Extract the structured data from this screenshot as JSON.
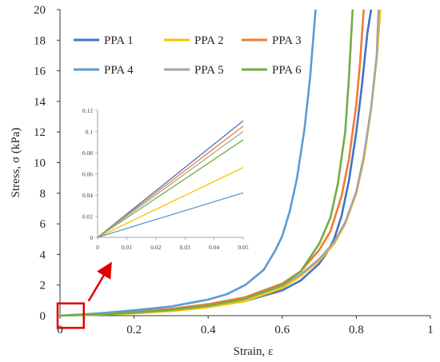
{
  "chart_data": [
    {
      "type": "line",
      "role": "main",
      "xlabel": "Strain,  ε",
      "ylabel": "Stress, σ (kPa)",
      "xlim": [
        0,
        1
      ],
      "ylim": [
        0,
        20
      ],
      "xticks": [
        "0",
        "0.2",
        "0.4",
        "0.6",
        "0.8",
        "1"
      ],
      "yticks": [
        "0",
        "2",
        "4",
        "6",
        "8",
        "10",
        "12",
        "14",
        "16",
        "18",
        "20"
      ],
      "grid": false,
      "legend_position": "top",
      "series": [
        {
          "name": "PPA 1",
          "color": "#4472C4",
          "x": [
            0,
            0.1,
            0.2,
            0.3,
            0.4,
            0.5,
            0.6,
            0.65,
            0.7,
            0.72,
            0.74,
            0.76,
            0.78,
            0.8,
            0.815,
            0.83,
            0.84
          ],
          "y": [
            0,
            0.1,
            0.22,
            0.38,
            0.6,
            0.95,
            1.65,
            2.3,
            3.4,
            4.1,
            5.0,
            6.5,
            8.8,
            12.0,
            15.0,
            18.5,
            20
          ]
        },
        {
          "name": "PPA 2",
          "color": "#FFC000",
          "x": [
            0,
            0.1,
            0.2,
            0.3,
            0.4,
            0.5,
            0.6,
            0.65,
            0.7,
            0.74,
            0.77,
            0.8,
            0.82,
            0.84,
            0.855,
            0.865
          ],
          "y": [
            0,
            0.06,
            0.15,
            0.3,
            0.55,
            0.95,
            1.8,
            2.6,
            3.6,
            4.7,
            6.0,
            8.0,
            10.2,
            13.5,
            16.8,
            20
          ]
        },
        {
          "name": "PPA 3",
          "color": "#ED7D31",
          "x": [
            0,
            0.1,
            0.2,
            0.3,
            0.4,
            0.5,
            0.6,
            0.65,
            0.7,
            0.73,
            0.76,
            0.78,
            0.8,
            0.81,
            0.82
          ],
          "y": [
            0,
            0.1,
            0.25,
            0.45,
            0.75,
            1.2,
            2.1,
            2.9,
            4.3,
            5.5,
            7.8,
            10.2,
            13.8,
            16.5,
            20
          ]
        },
        {
          "name": "PPA 4",
          "color": "#5B9BD5",
          "x": [
            0,
            0.1,
            0.2,
            0.3,
            0.4,
            0.45,
            0.5,
            0.55,
            0.58,
            0.6,
            0.62,
            0.64,
            0.66,
            0.675,
            0.69
          ],
          "y": [
            0,
            0.14,
            0.35,
            0.6,
            1.05,
            1.4,
            2.0,
            3.0,
            4.2,
            5.2,
            6.8,
            9.0,
            12.2,
            15.5,
            20
          ]
        },
        {
          "name": "PPA 5",
          "color": "#A5A5A5",
          "x": [
            0,
            0.1,
            0.2,
            0.3,
            0.4,
            0.5,
            0.6,
            0.65,
            0.7,
            0.74,
            0.77,
            0.8,
            0.82,
            0.84,
            0.855,
            0.86
          ],
          "y": [
            0,
            0.09,
            0.2,
            0.38,
            0.65,
            1.1,
            1.95,
            2.7,
            3.7,
            4.8,
            6.1,
            8.1,
            10.4,
            13.6,
            17.0,
            20
          ]
        },
        {
          "name": "PPA 6",
          "color": "#70AD47",
          "x": [
            0,
            0.1,
            0.2,
            0.3,
            0.4,
            0.5,
            0.6,
            0.65,
            0.7,
            0.73,
            0.75,
            0.77,
            0.78,
            0.79
          ],
          "y": [
            0,
            0.08,
            0.2,
            0.38,
            0.65,
            1.1,
            2.0,
            2.9,
            4.7,
            6.4,
            8.6,
            12.0,
            15.5,
            20
          ]
        }
      ]
    },
    {
      "type": "line",
      "role": "inset",
      "xlim": [
        0,
        0.05
      ],
      "ylim": [
        0,
        0.12
      ],
      "xticks": [
        "0",
        "0.01",
        "0.02",
        "0.03",
        "0.04",
        "0.05"
      ],
      "yticks": [
        "0",
        "0.02",
        "0.04",
        "0.06",
        "0.08",
        "0.1",
        "0.12"
      ],
      "grid": false,
      "series": [
        {
          "name": "PPA 1",
          "color": "#4472C4",
          "x": [
            0,
            0.05
          ],
          "y": [
            0,
            0.11
          ]
        },
        {
          "name": "PPA 2",
          "color": "#FFC000",
          "x": [
            0,
            0.05
          ],
          "y": [
            0,
            0.066
          ]
        },
        {
          "name": "PPA 3",
          "color": "#ED7D31",
          "x": [
            0,
            0.05
          ],
          "y": [
            0,
            0.105
          ]
        },
        {
          "name": "PPA 4",
          "color": "#5B9BD5",
          "x": [
            0,
            0.05
          ],
          "y": [
            0,
            0.042
          ]
        },
        {
          "name": "PPA 5",
          "color": "#A5A5A5",
          "x": [
            0,
            0.05
          ],
          "y": [
            0,
            0.1
          ]
        },
        {
          "name": "PPA 6",
          "color": "#70AD47",
          "x": [
            0,
            0.05
          ],
          "y": [
            0,
            0.092
          ]
        }
      ]
    }
  ],
  "annotation": {
    "zoom_box_color": "#E00000",
    "zoom_box_x": [
      0,
      0.06
    ],
    "zoom_box_y": [
      -0.8,
      0.8
    ],
    "arrow_color": "#E00000"
  }
}
